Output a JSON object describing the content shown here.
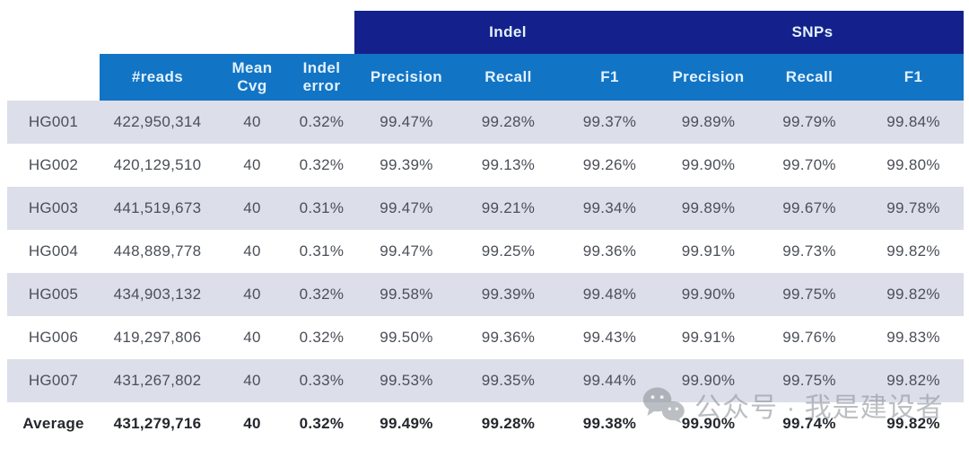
{
  "colors": {
    "group_header_bg": "#14218c",
    "column_header_bg": "#1274c5",
    "header_text": "#e3f2fc",
    "stripe_bg": "#dcdee9",
    "row_bg": "#ffffff",
    "data_text": "#4b4f57",
    "average_text": "#24272d",
    "watermark_gray": "#8f959c"
  },
  "table": {
    "group_headers": [
      {
        "label": "Indel",
        "span": 3
      },
      {
        "label": "SNPs",
        "span": 3
      }
    ],
    "column_headers": [
      "#reads",
      "Mean\nCvg",
      "Indel\nerror",
      "Precision",
      "Recall",
      "F1",
      "Precision",
      "Recall",
      "F1"
    ],
    "rows": [
      [
        "HG001",
        "422,950,314",
        "40",
        "0.32%",
        "99.47%",
        "99.28%",
        "99.37%",
        "99.89%",
        "99.79%",
        "99.84%"
      ],
      [
        "HG002",
        "420,129,510",
        "40",
        "0.32%",
        "99.39%",
        "99.13%",
        "99.26%",
        "99.90%",
        "99.70%",
        "99.80%"
      ],
      [
        "HG003",
        "441,519,673",
        "40",
        "0.31%",
        "99.47%",
        "99.21%",
        "99.34%",
        "99.89%",
        "99.67%",
        "99.78%"
      ],
      [
        "HG004",
        "448,889,778",
        "40",
        "0.31%",
        "99.47%",
        "99.25%",
        "99.36%",
        "99.91%",
        "99.73%",
        "99.82%"
      ],
      [
        "HG005",
        "434,903,132",
        "40",
        "0.32%",
        "99.58%",
        "99.39%",
        "99.48%",
        "99.90%",
        "99.75%",
        "99.82%"
      ],
      [
        "HG006",
        "419,297,806",
        "40",
        "0.32%",
        "99.50%",
        "99.36%",
        "99.43%",
        "99.91%",
        "99.76%",
        "99.83%"
      ],
      [
        "HG007",
        "431,267,802",
        "40",
        "0.33%",
        "99.53%",
        "99.35%",
        "99.44%",
        "99.90%",
        "99.75%",
        "99.82%"
      ],
      [
        "Average",
        "431,279,716",
        "40",
        "0.32%",
        "99.49%",
        "99.28%",
        "99.38%",
        "99.90%",
        "99.74%",
        "99.82%"
      ]
    ]
  },
  "watermark": {
    "icon": "wechat-icon",
    "text": "公众号 · 我是建设者"
  }
}
